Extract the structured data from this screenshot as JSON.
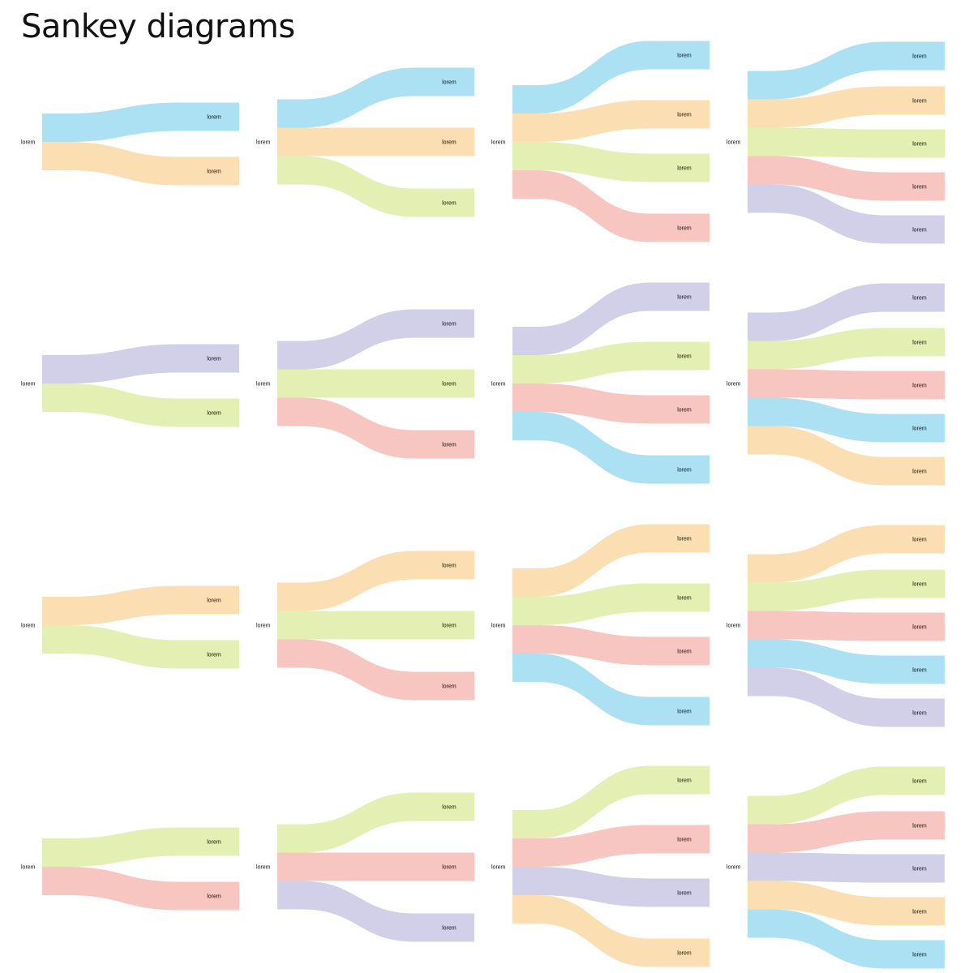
{
  "title": "Sankey diagrams",
  "palette": {
    "blue": "#ace1f3",
    "orange": "#fbdfb3",
    "green": "#e4efb4",
    "red": "#f8c6c0",
    "purple": "#d1d0e8"
  },
  "diagrams": [
    {
      "source": "lorem",
      "targets": [
        {
          "label": "lorem",
          "color": "blue"
        },
        {
          "label": "lorem",
          "color": "orange"
        }
      ]
    },
    {
      "source": "lorem",
      "targets": [
        {
          "label": "lorem",
          "color": "blue"
        },
        {
          "label": "lorem",
          "color": "orange"
        },
        {
          "label": "lorem",
          "color": "green"
        }
      ]
    },
    {
      "source": "lorem",
      "targets": [
        {
          "label": "lorem",
          "color": "blue"
        },
        {
          "label": "lorem",
          "color": "orange"
        },
        {
          "label": "lorem",
          "color": "green"
        },
        {
          "label": "lorem",
          "color": "red"
        }
      ]
    },
    {
      "source": "lorem",
      "targets": [
        {
          "label": "lorem",
          "color": "blue"
        },
        {
          "label": "lorem",
          "color": "orange"
        },
        {
          "label": "lorem",
          "color": "green"
        },
        {
          "label": "lorem",
          "color": "red"
        },
        {
          "label": "lorem",
          "color": "purple"
        }
      ]
    },
    {
      "source": "lorem",
      "targets": [
        {
          "label": "lorem",
          "color": "purple"
        },
        {
          "label": "lorem",
          "color": "green"
        }
      ]
    },
    {
      "source": "lorem",
      "targets": [
        {
          "label": "lorem",
          "color": "purple"
        },
        {
          "label": "lorem",
          "color": "green"
        },
        {
          "label": "lorem",
          "color": "red"
        }
      ]
    },
    {
      "source": "lorem",
      "targets": [
        {
          "label": "lorem",
          "color": "purple"
        },
        {
          "label": "lorem",
          "color": "green"
        },
        {
          "label": "lorem",
          "color": "red"
        },
        {
          "label": "lorem",
          "color": "blue"
        }
      ]
    },
    {
      "source": "lorem",
      "targets": [
        {
          "label": "lorem",
          "color": "purple"
        },
        {
          "label": "lorem",
          "color": "green"
        },
        {
          "label": "lorem",
          "color": "red"
        },
        {
          "label": "lorem",
          "color": "blue"
        },
        {
          "label": "lorem",
          "color": "orange"
        }
      ]
    },
    {
      "source": "lorem",
      "targets": [
        {
          "label": "lorem",
          "color": "orange"
        },
        {
          "label": "lorem",
          "color": "green"
        }
      ]
    },
    {
      "source": "lorem",
      "targets": [
        {
          "label": "lorem",
          "color": "orange"
        },
        {
          "label": "lorem",
          "color": "green"
        },
        {
          "label": "lorem",
          "color": "red"
        }
      ]
    },
    {
      "source": "lorem",
      "targets": [
        {
          "label": "lorem",
          "color": "orange"
        },
        {
          "label": "lorem",
          "color": "green"
        },
        {
          "label": "lorem",
          "color": "red"
        },
        {
          "label": "lorem",
          "color": "blue"
        }
      ]
    },
    {
      "source": "lorem",
      "targets": [
        {
          "label": "lorem",
          "color": "orange"
        },
        {
          "label": "lorem",
          "color": "green"
        },
        {
          "label": "lorem",
          "color": "red"
        },
        {
          "label": "lorem",
          "color": "blue"
        },
        {
          "label": "lorem",
          "color": "purple"
        }
      ]
    },
    {
      "source": "lorem",
      "targets": [
        {
          "label": "lorem",
          "color": "green"
        },
        {
          "label": "lorem",
          "color": "red"
        }
      ]
    },
    {
      "source": "lorem",
      "targets": [
        {
          "label": "lorem",
          "color": "green"
        },
        {
          "label": "lorem",
          "color": "red"
        },
        {
          "label": "lorem",
          "color": "purple"
        }
      ]
    },
    {
      "source": "lorem",
      "targets": [
        {
          "label": "lorem",
          "color": "green"
        },
        {
          "label": "lorem",
          "color": "red"
        },
        {
          "label": "lorem",
          "color": "purple"
        },
        {
          "label": "lorem",
          "color": "orange"
        }
      ]
    },
    {
      "source": "lorem",
      "targets": [
        {
          "label": "lorem",
          "color": "green"
        },
        {
          "label": "lorem",
          "color": "red"
        },
        {
          "label": "lorem",
          "color": "purple"
        },
        {
          "label": "lorem",
          "color": "orange"
        },
        {
          "label": "lorem",
          "color": "blue"
        }
      ]
    }
  ]
}
